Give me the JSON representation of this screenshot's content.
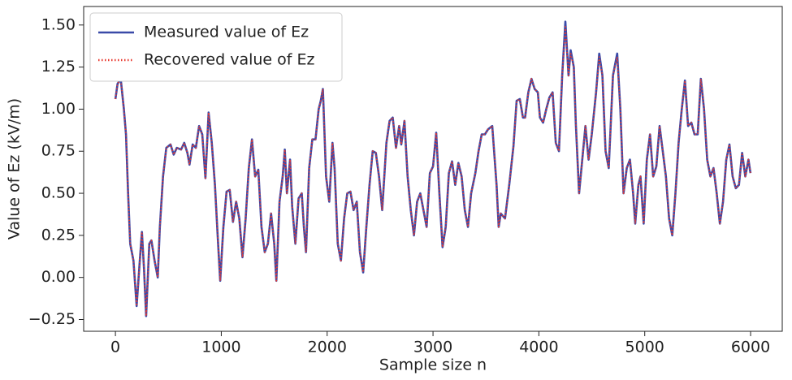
{
  "chart_data": {
    "type": "line",
    "xlabel": "Sample size n",
    "ylabel": "Value of Ez (kV/m)",
    "xlim": [
      -300,
      6299
    ],
    "ylim": [
      -0.32,
      1.61
    ],
    "xticks": [
      0,
      1000,
      2000,
      3000,
      4000,
      5000,
      6000
    ],
    "yticks": [
      {
        "value": -0.25,
        "label": "−0.25"
      },
      {
        "value": 0,
        "label": "0.00"
      },
      {
        "value": 0.25,
        "label": "0.25"
      },
      {
        "value": 0.5,
        "label": "0.50"
      },
      {
        "value": 0.75,
        "label": "0.75"
      },
      {
        "value": 1,
        "label": "1.00"
      },
      {
        "value": 1.25,
        "label": "1.25"
      },
      {
        "value": 1.5,
        "label": "1.50"
      }
    ],
    "legend": "upper left",
    "x": [
      0,
      20,
      50,
      80,
      100,
      120,
      140,
      170,
      200,
      230,
      250,
      270,
      290,
      320,
      340,
      370,
      400,
      420,
      450,
      480,
      520,
      550,
      580,
      620,
      650,
      680,
      700,
      730,
      760,
      790,
      820,
      850,
      880,
      910,
      940,
      970,
      990,
      1020,
      1050,
      1080,
      1110,
      1140,
      1170,
      1200,
      1230,
      1260,
      1290,
      1320,
      1350,
      1380,
      1410,
      1440,
      1470,
      1500,
      1520,
      1550,
      1580,
      1600,
      1620,
      1650,
      1670,
      1700,
      1730,
      1760,
      1780,
      1800,
      1830,
      1860,
      1890,
      1920,
      1940,
      1960,
      1990,
      2020,
      2050,
      2070,
      2100,
      2130,
      2160,
      2190,
      2220,
      2250,
      2280,
      2310,
      2340,
      2370,
      2400,
      2430,
      2460,
      2490,
      2520,
      2560,
      2590,
      2620,
      2650,
      2680,
      2700,
      2730,
      2760,
      2790,
      2820,
      2850,
      2880,
      2910,
      2940,
      2970,
      3000,
      3030,
      3060,
      3090,
      3120,
      3150,
      3180,
      3210,
      3240,
      3270,
      3300,
      3330,
      3360,
      3400,
      3430,
      3460,
      3490,
      3520,
      3560,
      3600,
      3620,
      3640,
      3680,
      3720,
      3760,
      3790,
      3820,
      3850,
      3870,
      3900,
      3930,
      3960,
      3990,
      4010,
      4040,
      4070,
      4100,
      4130,
      4160,
      4190,
      4220,
      4250,
      4280,
      4300,
      4330,
      4350,
      4380,
      4410,
      4440,
      4470,
      4500,
      4540,
      4570,
      4600,
      4630,
      4660,
      4700,
      4740,
      4770,
      4800,
      4830,
      4860,
      4890,
      4910,
      4940,
      4960,
      4990,
      5020,
      5050,
      5080,
      5110,
      5140,
      5170,
      5200,
      5230,
      5260,
      5290,
      5320,
      5350,
      5380,
      5410,
      5440,
      5470,
      5500,
      5530,
      5560,
      5590,
      5620,
      5650,
      5680,
      5710,
      5740,
      5770,
      5800,
      5830,
      5860,
      5890,
      5920,
      5950,
      5980,
      5999
    ],
    "series": [
      {
        "name": "Measured value of Ez",
        "color": "#3a4aa8",
        "style": "solid",
        "values": [
          1.06,
          1.15,
          1.18,
          1.0,
          0.85,
          0.5,
          0.2,
          0.1,
          -0.17,
          0.1,
          0.27,
          0.05,
          -0.23,
          0.2,
          0.22,
          0.1,
          0.0,
          0.3,
          0.6,
          0.77,
          0.79,
          0.73,
          0.77,
          0.76,
          0.8,
          0.74,
          0.67,
          0.79,
          0.77,
          0.9,
          0.85,
          0.59,
          0.98,
          0.8,
          0.55,
          0.2,
          -0.02,
          0.3,
          0.51,
          0.52,
          0.33,
          0.45,
          0.35,
          0.12,
          0.35,
          0.65,
          0.82,
          0.6,
          0.64,
          0.3,
          0.15,
          0.2,
          0.38,
          0.2,
          -0.02,
          0.45,
          0.6,
          0.76,
          0.5,
          0.7,
          0.42,
          0.2,
          0.47,
          0.5,
          0.3,
          0.15,
          0.65,
          0.82,
          0.82,
          1.0,
          1.05,
          1.12,
          0.6,
          0.45,
          0.8,
          0.65,
          0.2,
          0.1,
          0.35,
          0.5,
          0.51,
          0.4,
          0.45,
          0.15,
          0.03,
          0.3,
          0.55,
          0.75,
          0.74,
          0.6,
          0.4,
          0.8,
          0.93,
          0.95,
          0.77,
          0.9,
          0.79,
          0.93,
          0.6,
          0.4,
          0.25,
          0.45,
          0.5,
          0.4,
          0.3,
          0.62,
          0.66,
          0.86,
          0.5,
          0.18,
          0.3,
          0.62,
          0.69,
          0.55,
          0.68,
          0.6,
          0.4,
          0.3,
          0.5,
          0.62,
          0.75,
          0.85,
          0.85,
          0.88,
          0.9,
          0.55,
          0.3,
          0.38,
          0.35,
          0.55,
          0.78,
          1.05,
          1.06,
          0.95,
          0.95,
          1.1,
          1.18,
          1.12,
          1.1,
          0.95,
          0.92,
          1.0,
          1.07,
          1.1,
          0.8,
          0.75,
          1.2,
          1.52,
          1.2,
          1.35,
          1.25,
          0.9,
          0.5,
          0.7,
          0.9,
          0.7,
          0.85,
          1.1,
          1.33,
          1.2,
          0.75,
          0.65,
          1.2,
          1.33,
          1.0,
          0.5,
          0.65,
          0.7,
          0.5,
          0.32,
          0.55,
          0.6,
          0.32,
          0.7,
          0.85,
          0.6,
          0.66,
          0.9,
          0.75,
          0.6,
          0.35,
          0.25,
          0.5,
          0.8,
          1.0,
          1.17,
          0.9,
          0.92,
          0.85,
          0.85,
          1.18,
          1.0,
          0.7,
          0.6,
          0.65,
          0.5,
          0.32,
          0.45,
          0.7,
          0.79,
          0.6,
          0.53,
          0.55,
          0.74,
          0.6,
          0.7,
          0.62
        ]
      },
      {
        "name": "Recovered value of Ez",
        "color": "#e8392f",
        "style": "dotted",
        "values": [
          1.06,
          1.15,
          1.18,
          1.0,
          0.85,
          0.5,
          0.2,
          0.1,
          -0.17,
          0.1,
          0.27,
          0.05,
          -0.23,
          0.2,
          0.22,
          0.1,
          0.0,
          0.3,
          0.6,
          0.77,
          0.79,
          0.73,
          0.77,
          0.76,
          0.8,
          0.74,
          0.67,
          0.79,
          0.77,
          0.9,
          0.85,
          0.59,
          0.98,
          0.8,
          0.55,
          0.2,
          -0.02,
          0.3,
          0.51,
          0.52,
          0.33,
          0.45,
          0.35,
          0.12,
          0.35,
          0.65,
          0.82,
          0.6,
          0.64,
          0.3,
          0.15,
          0.2,
          0.38,
          0.2,
          -0.02,
          0.45,
          0.6,
          0.76,
          0.5,
          0.7,
          0.42,
          0.2,
          0.47,
          0.5,
          0.3,
          0.15,
          0.65,
          0.82,
          0.82,
          1.0,
          1.05,
          1.12,
          0.6,
          0.45,
          0.8,
          0.65,
          0.2,
          0.1,
          0.35,
          0.5,
          0.51,
          0.4,
          0.45,
          0.15,
          0.03,
          0.3,
          0.55,
          0.75,
          0.74,
          0.6,
          0.4,
          0.8,
          0.93,
          0.95,
          0.77,
          0.9,
          0.79,
          0.93,
          0.6,
          0.4,
          0.25,
          0.45,
          0.5,
          0.4,
          0.3,
          0.62,
          0.66,
          0.86,
          0.5,
          0.18,
          0.3,
          0.62,
          0.69,
          0.55,
          0.68,
          0.6,
          0.4,
          0.3,
          0.5,
          0.62,
          0.75,
          0.85,
          0.85,
          0.88,
          0.9,
          0.55,
          0.3,
          0.38,
          0.35,
          0.55,
          0.78,
          1.05,
          1.06,
          0.95,
          0.95,
          1.1,
          1.18,
          1.12,
          1.1,
          0.95,
          0.92,
          1.0,
          1.07,
          1.1,
          0.8,
          0.75,
          1.2,
          1.49,
          1.2,
          1.33,
          1.25,
          0.9,
          0.5,
          0.7,
          0.9,
          0.7,
          0.85,
          1.1,
          1.31,
          1.2,
          0.75,
          0.65,
          1.2,
          1.31,
          1.0,
          0.5,
          0.65,
          0.7,
          0.5,
          0.32,
          0.55,
          0.6,
          0.32,
          0.7,
          0.85,
          0.6,
          0.66,
          0.9,
          0.75,
          0.6,
          0.35,
          0.25,
          0.5,
          0.8,
          1.0,
          1.17,
          0.9,
          0.92,
          0.85,
          0.85,
          1.18,
          1.0,
          0.7,
          0.6,
          0.65,
          0.5,
          0.32,
          0.45,
          0.7,
          0.79,
          0.6,
          0.53,
          0.55,
          0.74,
          0.6,
          0.7,
          0.62
        ]
      }
    ]
  }
}
